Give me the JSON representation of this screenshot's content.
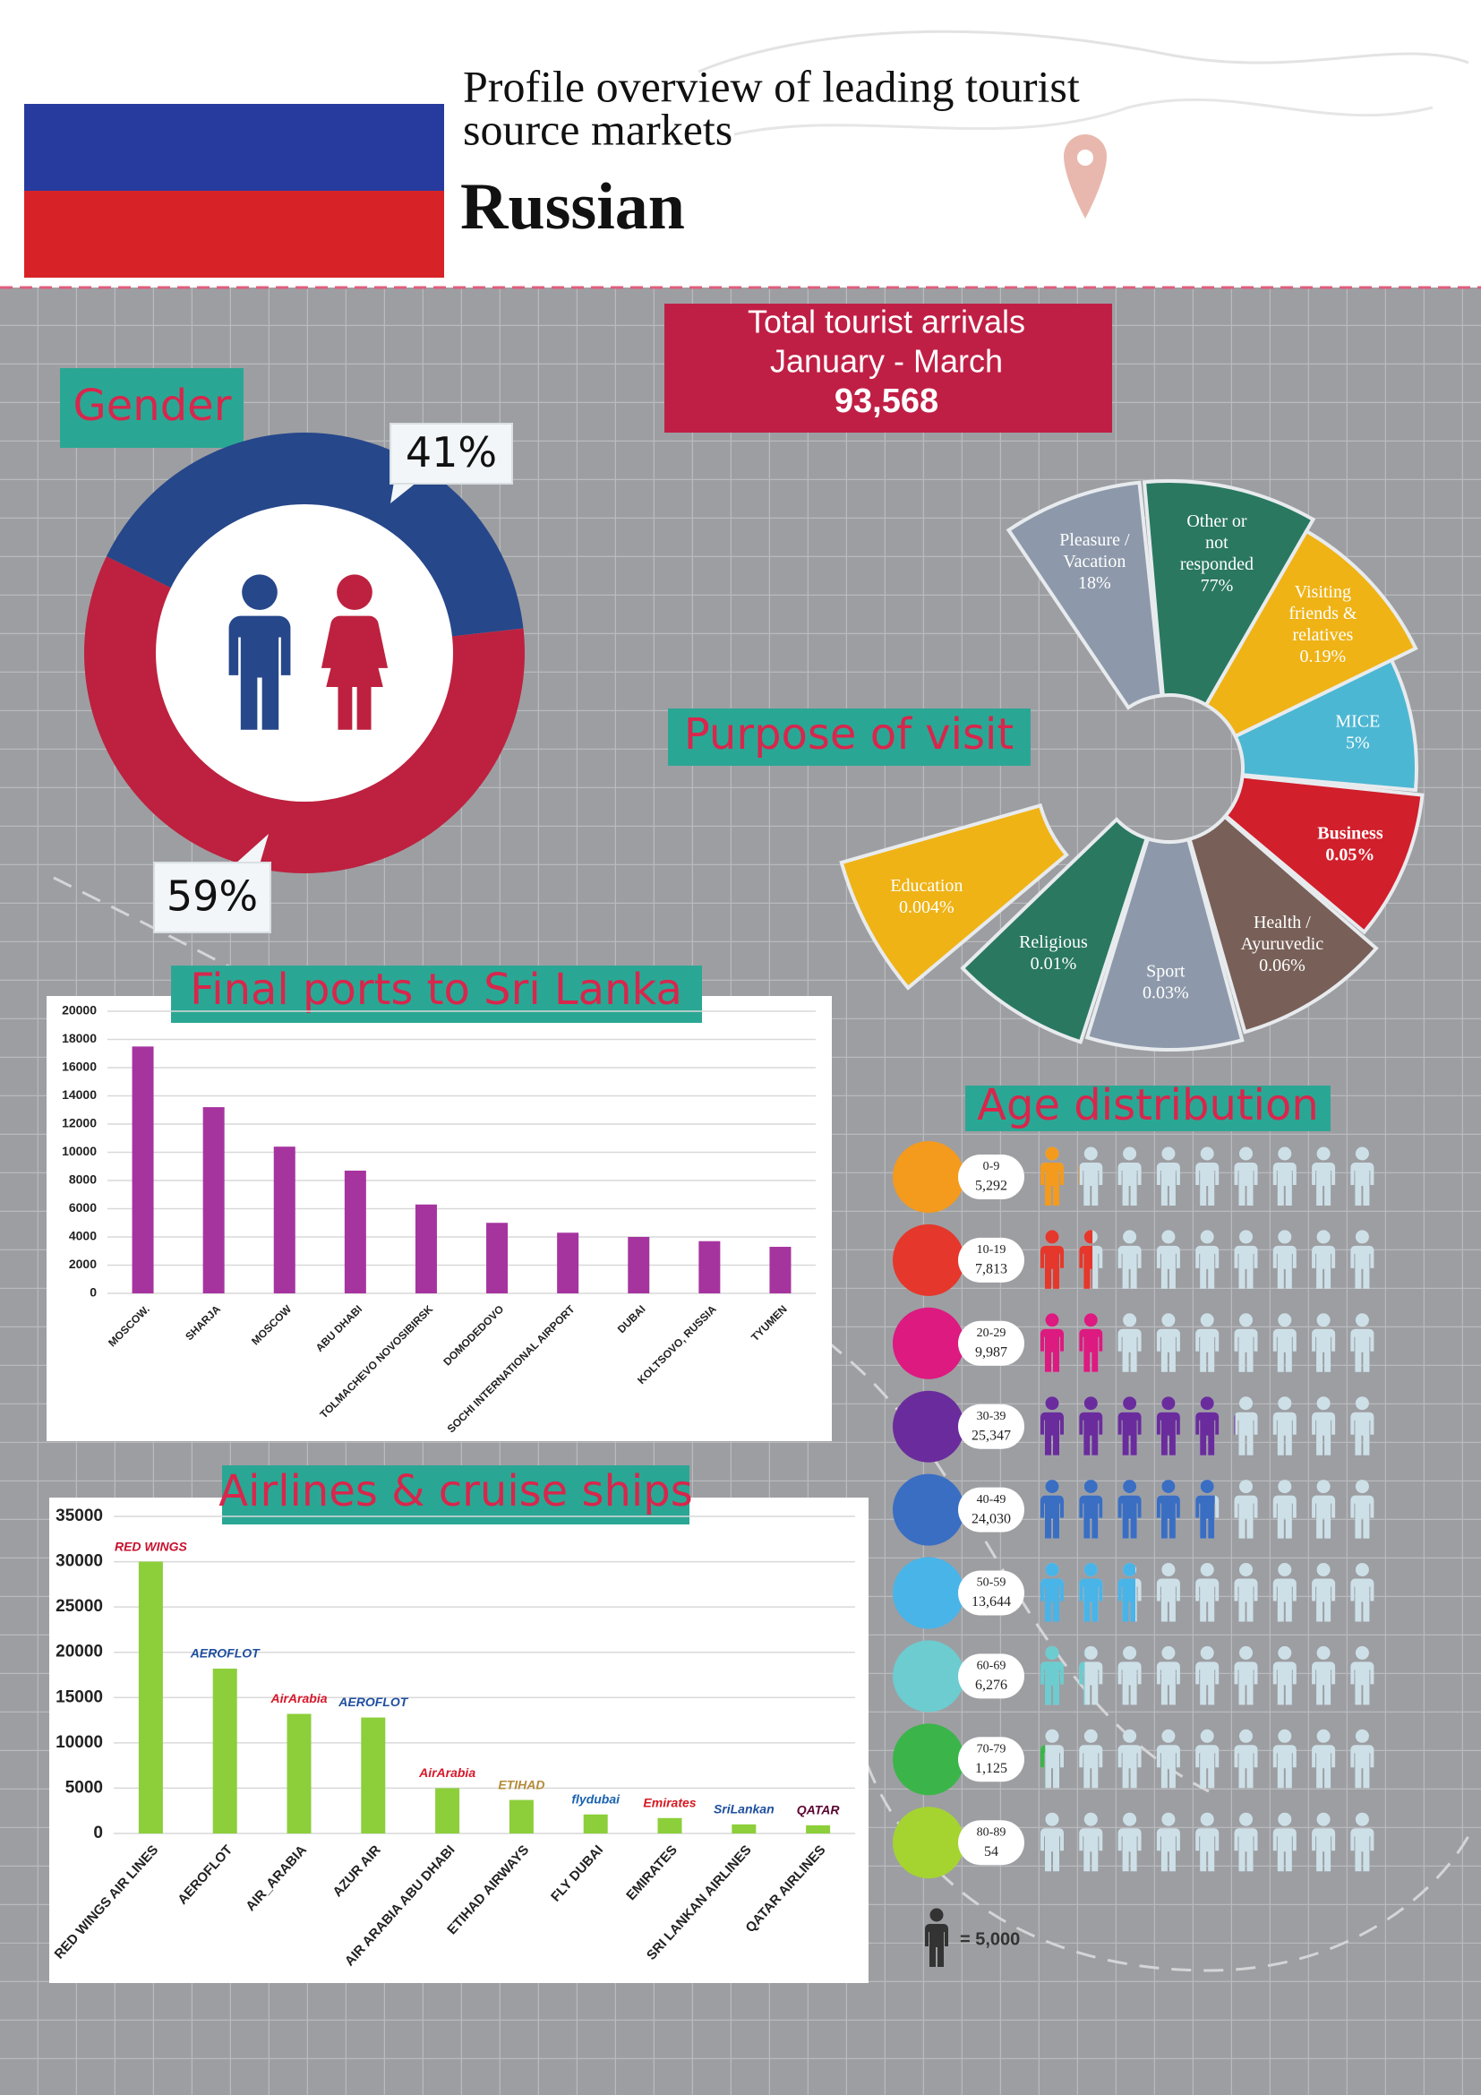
{
  "header": {
    "title": [
      "Profile overview of leading tourist",
      "source markets"
    ],
    "subtitle": "Russian"
  },
  "total_arrivals": {
    "label": [
      "Total tourist arrivals",
      "January - March"
    ],
    "value": "93,568"
  },
  "chart_data": [
    {
      "type": "donut",
      "title": "Gender",
      "values": [
        41,
        59
      ],
      "value_labels": [
        "41%",
        "59%"
      ],
      "colors": [
        "#26478a",
        "#bd213f"
      ]
    },
    {
      "type": "wheel",
      "title": "Purpose of visit",
      "categories": [
        [
          "Pleasure /",
          "Vacation"
        ],
        [
          "Other or",
          "not",
          "responded"
        ],
        [
          "Visiting",
          "friends &",
          "relatives"
        ],
        [
          "MICE"
        ],
        [
          "Business"
        ],
        [
          "Health /",
          "Ayuruvedic"
        ],
        [
          "Sport"
        ],
        [
          "Religious"
        ],
        [
          "Education"
        ]
      ],
      "values": [
        18,
        77,
        0.19,
        5,
        0.05,
        0.06,
        0.03,
        0.01,
        0.004
      ],
      "value_labels": [
        "18%",
        "77%",
        "0.19%",
        "5%",
        "0.05%",
        "0.06%",
        "0.03%",
        "0.01%",
        "0.004%"
      ],
      "colors": [
        "#8d99aa",
        "#2a7860",
        "#efb316",
        "#4cb7d3",
        "#d11f2b",
        "#786058",
        "#8d99aa",
        "#2a7860",
        "#efb316"
      ]
    },
    {
      "type": "bar",
      "title": "Final ports to Sri Lanka",
      "categories": [
        "MOSCOW.",
        "SHARJA",
        "MOSCOW",
        "ABU DHABI",
        "TOLMACHEVO NOVOSIBIRSK",
        "DOMODEDOVO",
        "SOCHI INTERNATIONAL AIRPORT",
        "DUBAI",
        "KOLTSOVO, RUSSIA",
        "TYUMEN"
      ],
      "values": [
        17500,
        13200,
        10400,
        8700,
        6300,
        5000,
        4300,
        4000,
        3700,
        3300
      ],
      "color": "#a6349f",
      "ylim": [
        0,
        20000
      ],
      "yticks": [
        0,
        2000,
        4000,
        6000,
        8000,
        10000,
        12000,
        14000,
        16000,
        18000,
        20000
      ],
      "grid": true
    },
    {
      "type": "bar",
      "title": "Airlines & cruise ships",
      "categories": [
        "RED WINGS AIR LINES",
        "AEROFLOT",
        "AIR_ARABIA",
        "AZUR AIR",
        "AIR ARABIA ABU DHABI",
        "ETIHAD AIRWAYS",
        "FLY DUBAI",
        "EMIRATES",
        "SRI LANKAN AIRLINES",
        "QATAR AIRLINES"
      ],
      "logos": [
        "RED WINGS",
        "AEROFLOT",
        "AirArabia",
        "AEROFLOT",
        "AirArabia",
        "ETIHAD",
        "flydubai",
        "Emirates",
        "SriLankan",
        "QATAR"
      ],
      "logo_colors": [
        "#c8102e",
        "#1f4fa0",
        "#d7182a",
        "#1f4fa0",
        "#d7182a",
        "#b58b3a",
        "#1a62b0",
        "#d71921",
        "#1d4e9e",
        "#5c0632"
      ],
      "values": [
        30000,
        18200,
        13200,
        12800,
        5000,
        3700,
        2100,
        1700,
        1000,
        900
      ],
      "color": "#8ccf3a",
      "ylim": [
        0,
        35000
      ],
      "yticks": [
        0,
        5000,
        10000,
        15000,
        20000,
        25000,
        30000,
        35000
      ],
      "grid": true
    },
    {
      "type": "pictogram",
      "title": "Age distribution",
      "categories": [
        "0-9",
        "10-19",
        "20-29",
        "30-39",
        "40-49",
        "50-59",
        "60-69",
        "70-79",
        "80-89"
      ],
      "values": [
        5292,
        7813,
        9987,
        25347,
        24030,
        13644,
        6276,
        1125,
        54
      ],
      "value_labels": [
        "5,292",
        "7,813",
        "9,987",
        "25,347",
        "24,030",
        "13,644",
        "6,276",
        "1,125",
        "54"
      ],
      "colors": [
        "#f49a1d",
        "#e5372b",
        "#dc1a80",
        "#6a2c9c",
        "#3a6ec3",
        "#49b4e8",
        "#6ccccf",
        "#3bb54a",
        "#a5d431"
      ],
      "unit": {
        "value": 5000,
        "label": "= 5,000"
      }
    }
  ]
}
